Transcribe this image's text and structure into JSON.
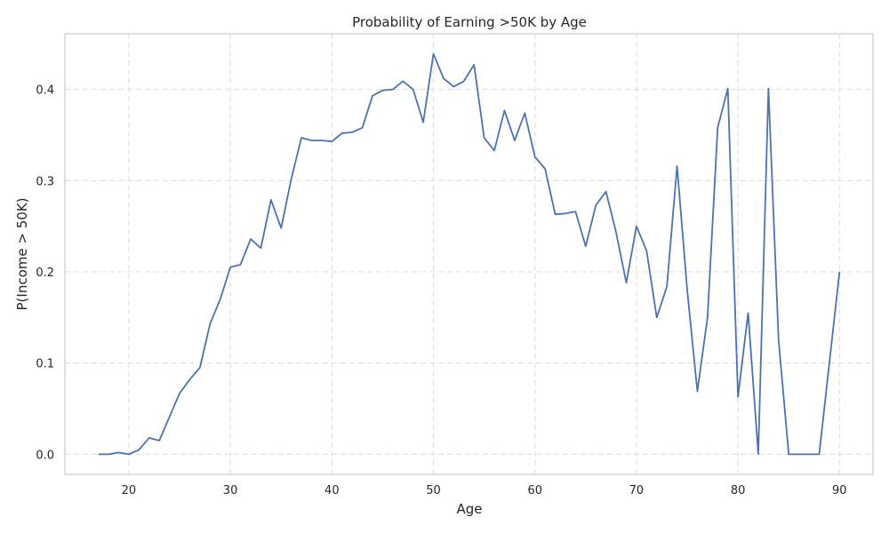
{
  "colors": {
    "line": "#4c72b0",
    "background": "#ffffff"
  },
  "chart_data": {
    "type": "line",
    "title": "Probability of Earning >50K by Age",
    "xlabel": "Age",
    "ylabel": "P(Income > 50K)",
    "xlim": [
      13.7,
      93.3
    ],
    "ylim": [
      -0.022,
      0.461
    ],
    "xticks": [
      20,
      30,
      40,
      50,
      60,
      70,
      80,
      90
    ],
    "yticks": [
      0.0,
      0.1,
      0.2,
      0.3,
      0.4
    ],
    "ytick_labels": [
      "0.0",
      "0.1",
      "0.2",
      "0.3",
      "0.4"
    ],
    "grid": true,
    "x": [
      17,
      18,
      19,
      20,
      21,
      22,
      23,
      24,
      25,
      26,
      27,
      28,
      29,
      30,
      31,
      32,
      33,
      34,
      35,
      36,
      37,
      38,
      39,
      40,
      41,
      42,
      43,
      44,
      45,
      46,
      47,
      48,
      49,
      50,
      51,
      52,
      53,
      54,
      55,
      56,
      57,
      58,
      59,
      60,
      61,
      62,
      63,
      64,
      65,
      66,
      67,
      68,
      69,
      70,
      71,
      72,
      73,
      74,
      75,
      76,
      77,
      78,
      79,
      80,
      81,
      82,
      83,
      84,
      85,
      86,
      87,
      88,
      90
    ],
    "series": [
      {
        "values": [
          0.0,
          0.0,
          0.002,
          0.0,
          0.005,
          0.018,
          0.015,
          0.041,
          0.067,
          0.082,
          0.095,
          0.143,
          0.17,
          0.205,
          0.208,
          0.236,
          0.226,
          0.279,
          0.248,
          0.302,
          0.347,
          0.344,
          0.344,
          0.343,
          0.352,
          0.353,
          0.358,
          0.393,
          0.399,
          0.4,
          0.409,
          0.4,
          0.364,
          0.439,
          0.412,
          0.403,
          0.409,
          0.427,
          0.347,
          0.333,
          0.377,
          0.344,
          0.374,
          0.326,
          0.313,
          0.263,
          0.264,
          0.266,
          0.228,
          0.273,
          0.288,
          0.243,
          0.188,
          0.25,
          0.223,
          0.15,
          0.184,
          0.316,
          0.18,
          0.069,
          0.15,
          0.358,
          0.401,
          0.063,
          0.155,
          0.0,
          0.401,
          0.125,
          0.0,
          0.0,
          0.0,
          0.0,
          0.2
        ]
      }
    ]
  }
}
